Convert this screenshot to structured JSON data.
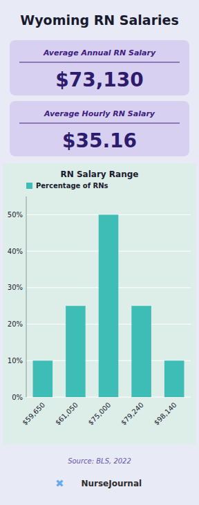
{
  "chart_data": {
    "type": "bar",
    "title": "Wyoming RN Salaries",
    "subtitle": "RN Salary Range",
    "categories": [
      "$59,650",
      "$61,050",
      "$75,000",
      "$79,240",
      "$98,140"
    ],
    "series": [
      {
        "name": "Percentage of RNs",
        "color": "#3dbdb5",
        "values": [
          10,
          25,
          50,
          25,
          10
        ]
      }
    ],
    "ylim": [
      0,
      55
    ],
    "yticks": [
      {
        "value": 0,
        "label": "0%"
      },
      {
        "value": 10,
        "label": "10%"
      },
      {
        "value": 20,
        "label": "20%"
      },
      {
        "value": 30,
        "label": "30%"
      },
      {
        "value": 40,
        "label": "40%"
      },
      {
        "value": 50,
        "label": "50%"
      }
    ],
    "grid": true,
    "legend": "upper-left",
    "annotations": [
      "Average Annual RN Salary",
      "$73,130",
      "Average Hourly RN Salary",
      "$35.16",
      "Source: BLS, 2022",
      "✖",
      "NurseJournal"
    ]
  }
}
